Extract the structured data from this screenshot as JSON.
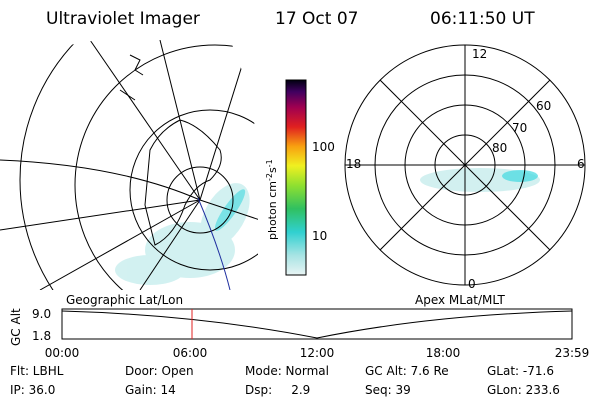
{
  "header": {
    "instrument": "Ultraviolet Imager",
    "date": "17 Oct 07",
    "time": "06:11:50 UT"
  },
  "colorbar": {
    "label": [
      "photon cm",
      "-2",
      "s",
      "-1"
    ],
    "ticks": [
      "100",
      "10"
    ]
  },
  "polar": {
    "mlt": [
      "12",
      "18",
      "6",
      "0"
    ],
    "mlat": [
      "60",
      "70",
      "80"
    ]
  },
  "track": {
    "left_title": "Geographic Lat/Lon",
    "right_title": "Apex MLat/MLT",
    "ylabel": "GC Alt",
    "yticks": [
      "9.0",
      "1.8"
    ],
    "xticks": [
      "00:00",
      "06:00",
      "12:00",
      "18:00",
      "23:59"
    ]
  },
  "info": {
    "rows": [
      [
        "Flt: LBHL",
        "Door: Open",
        "Mode: Normal",
        "GC Alt: 7.6 Re",
        "GLat: -71.6"
      ],
      [
        "IP: 36.0",
        "Gain: 14",
        "Dsp:     2.9",
        "Seq: 39",
        "GLon: 233.6"
      ]
    ]
  }
}
